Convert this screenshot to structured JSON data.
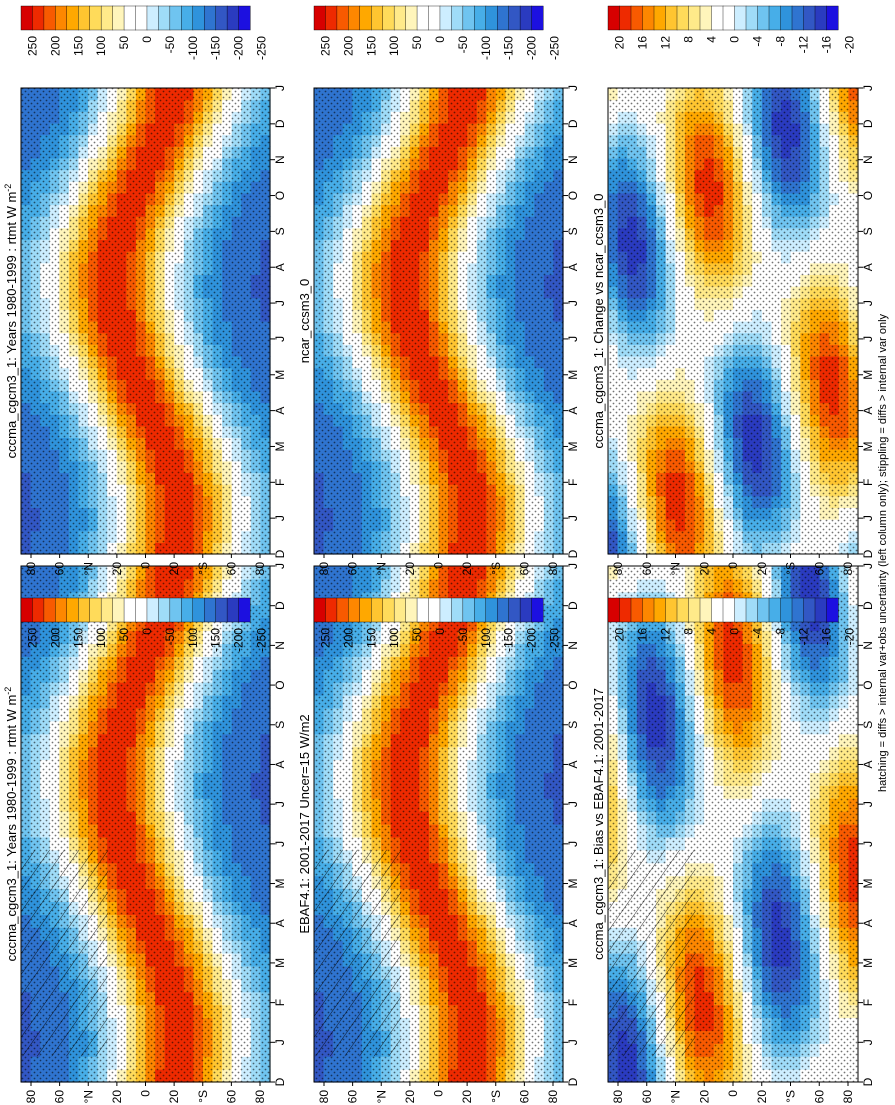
{
  "footnote": "hatching = diffs > internal var+obs uncertainty (left column only); stippling = diffs > internal var only",
  "colorbars": {
    "abs": {
      "colors": [
        "#d70000",
        "#ee2a00",
        "#f85a00",
        "#fd8700",
        "#ffa800",
        "#ffc530",
        "#ffdb5a",
        "#ffea8a",
        "#fff5bb",
        "#ffffff",
        "#ffffff",
        "#cdeeff",
        "#9fdcf8",
        "#6fc4f0",
        "#47aee8",
        "#2f93dc",
        "#2f74d0",
        "#3257c4",
        "#2a3bc0",
        "#1c10e0"
      ],
      "labels": [
        "250",
        "200",
        "150",
        "100",
        "50",
        "0",
        "-50",
        "-100",
        "-150",
        "-200",
        "-250"
      ]
    },
    "diff": {
      "colors": [
        "#d70000",
        "#ee2a00",
        "#f85a00",
        "#fd8700",
        "#ffa800",
        "#ffc530",
        "#ffdb5a",
        "#ffea8a",
        "#fff5bb",
        "#ffffff",
        "#ffffff",
        "#cdeeff",
        "#9fdcf8",
        "#6fc4f0",
        "#47aee8",
        "#2f93dc",
        "#2f74d0",
        "#3257c4",
        "#2a3bc0",
        "#1c10e0"
      ],
      "labels": [
        "20",
        "16",
        "12",
        "8",
        "4",
        "0",
        "-4",
        "-8",
        "-12",
        "-16",
        "-20"
      ]
    }
  },
  "chart_data": [
    {
      "type": "heatmap",
      "field": "rtmt",
      "kind": "abs",
      "title": "cccma_cgcm3_1: Years 1980-1999 : rtmt W m",
      "title_sup": "-2",
      "months": [
        "D",
        "J",
        "F",
        "M",
        "A",
        "M",
        "J",
        "J",
        "A",
        "S",
        "O",
        "N",
        "D",
        "J"
      ],
      "lat_labels": [
        "80",
        "60",
        "°N",
        "20",
        "0",
        "20",
        "°S",
        "60",
        "80"
      ],
      "colorbar_labels": [
        "250",
        "200",
        "150",
        "100",
        "50",
        "0",
        "-50",
        "-100",
        "-150",
        "-200",
        "-250"
      ],
      "hatching": true,
      "stippling": true
    },
    {
      "type": "heatmap",
      "field": "rtmt",
      "kind": "abs",
      "title": "cccma_cgcm3_1: Years 1980-1999 : rtmt W m",
      "title_sup": "-2",
      "months": [
        "D",
        "J",
        "F",
        "M",
        "A",
        "M",
        "J",
        "J",
        "A",
        "S",
        "O",
        "N",
        "D",
        "J"
      ],
      "lat_labels": [
        "80",
        "60",
        "°N",
        "20",
        "0",
        "20",
        "°S",
        "60",
        "80"
      ],
      "colorbar_labels": [
        "250",
        "200",
        "150",
        "100",
        "50",
        "0",
        "-50",
        "-100",
        "-150",
        "-200",
        "-250"
      ],
      "hatching": false,
      "stippling": true
    },
    {
      "type": "heatmap",
      "field": "rtmt",
      "kind": "abs",
      "title": "EBAF4.1: 2001-2017 Uncer=15 W/m2",
      "title_sup": "",
      "months": [
        "D",
        "J",
        "F",
        "M",
        "A",
        "M",
        "J",
        "J",
        "A",
        "S",
        "O",
        "N",
        "D",
        "J"
      ],
      "lat_labels": [
        "80",
        "60",
        "°N",
        "20",
        "0",
        "20",
        "°S",
        "60",
        "80"
      ],
      "colorbar_labels": [
        "250",
        "200",
        "150",
        "100",
        "50",
        "0",
        "-50",
        "-100",
        "-150",
        "-200",
        "-250"
      ],
      "hatching": true,
      "stippling": true
    },
    {
      "type": "heatmap",
      "field": "rtmt",
      "kind": "abs",
      "title": "ncar_ccsm3_0",
      "title_sup": "",
      "months": [
        "D",
        "J",
        "F",
        "M",
        "A",
        "M",
        "J",
        "J",
        "A",
        "S",
        "O",
        "N",
        "D",
        "J"
      ],
      "lat_labels": [
        "80",
        "60",
        "°N",
        "20",
        "0",
        "20",
        "°S",
        "60",
        "80"
      ],
      "colorbar_labels": [
        "250",
        "200",
        "150",
        "100",
        "50",
        "0",
        "-50",
        "-100",
        "-150",
        "-200",
        "-250"
      ],
      "hatching": false,
      "stippling": true
    },
    {
      "type": "heatmap",
      "field": "rtmt",
      "kind": "diff",
      "title": "cccma_cgcm3_1: Bias vs EBAF4.1: 2001-2017",
      "title_sup": "",
      "months": [
        "D",
        "J",
        "F",
        "M",
        "A",
        "M",
        "J",
        "J",
        "A",
        "S",
        "O",
        "N",
        "D",
        "J"
      ],
      "lat_labels": [
        "80",
        "60",
        "°N",
        "20",
        "0",
        "20",
        "°S",
        "60",
        "80"
      ],
      "colorbar_labels": [
        "20",
        "16",
        "12",
        "8",
        "4",
        "0",
        "-4",
        "-8",
        "-12",
        "-16",
        "-20"
      ],
      "hatching": true,
      "stippling": true
    },
    {
      "type": "heatmap",
      "field": "rtmt",
      "kind": "diff",
      "title": "cccma_cgcm3_1: Change vs ncar_ccsm3_0",
      "title_sup": "",
      "months": [
        "D",
        "J",
        "F",
        "M",
        "A",
        "M",
        "J",
        "J",
        "A",
        "S",
        "O",
        "N",
        "D",
        "J"
      ],
      "lat_labels": [
        "80",
        "60",
        "°N",
        "20",
        "0",
        "20",
        "°S",
        "60",
        "80"
      ],
      "colorbar_labels": [
        "20",
        "16",
        "12",
        "8",
        "4",
        "0",
        "-4",
        "-8",
        "-12",
        "-16",
        "-20"
      ],
      "hatching": false,
      "stippling": true
    }
  ]
}
